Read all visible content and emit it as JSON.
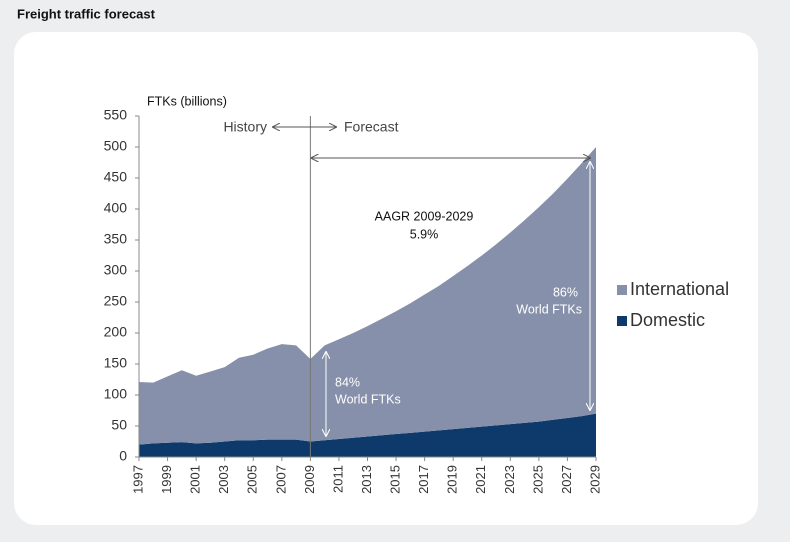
{
  "title": "Freight traffic forecast",
  "chart_data": {
    "type": "stacked-area",
    "y_label": "FTKs (billions)",
    "x": [
      1997,
      1998,
      1999,
      2000,
      2001,
      2002,
      2003,
      2004,
      2005,
      2006,
      2007,
      2008,
      2009,
      2010,
      2011,
      2012,
      2013,
      2014,
      2015,
      2016,
      2017,
      2018,
      2019,
      2020,
      2021,
      2022,
      2023,
      2024,
      2025,
      2026,
      2027,
      2028,
      2029
    ],
    "series": [
      {
        "name": "Domestic",
        "color": "#0d3a6b",
        "values": [
          20,
          22,
          23,
          24,
          22,
          23,
          25,
          27,
          27,
          28,
          28,
          28,
          25,
          27,
          29,
          31,
          33,
          35,
          37,
          39,
          41,
          43,
          45,
          47,
          49,
          51,
          53,
          55,
          57,
          60,
          63,
          66,
          70
        ]
      },
      {
        "name": "International",
        "color": "#8690aa",
        "values": [
          101,
          98,
          107,
          116,
          109,
          115,
          120,
          133,
          138,
          147,
          154,
          152,
          133,
          153,
          161,
          169,
          178,
          188,
          198,
          209,
          221,
          233,
          247,
          261,
          276,
          292,
          309,
          327,
          346,
          365,
          386,
          408,
          430
        ]
      }
    ],
    "xlim": [
      1997,
      2029
    ],
    "xticks": [
      1997,
      1999,
      2001,
      2003,
      2005,
      2007,
      2009,
      2011,
      2013,
      2015,
      2017,
      2019,
      2021,
      2023,
      2025,
      2027,
      2029
    ],
    "ylim": [
      0,
      550
    ],
    "yticks": [
      0,
      50,
      100,
      150,
      200,
      250,
      300,
      350,
      400,
      450,
      500,
      550
    ],
    "grid": false,
    "legend": "right",
    "annotations": [
      "History",
      "Forecast",
      "AAGR 2009-2029",
      "5.9%",
      "84%",
      "World FTKs",
      "86%",
      "World FTKs"
    ]
  }
}
